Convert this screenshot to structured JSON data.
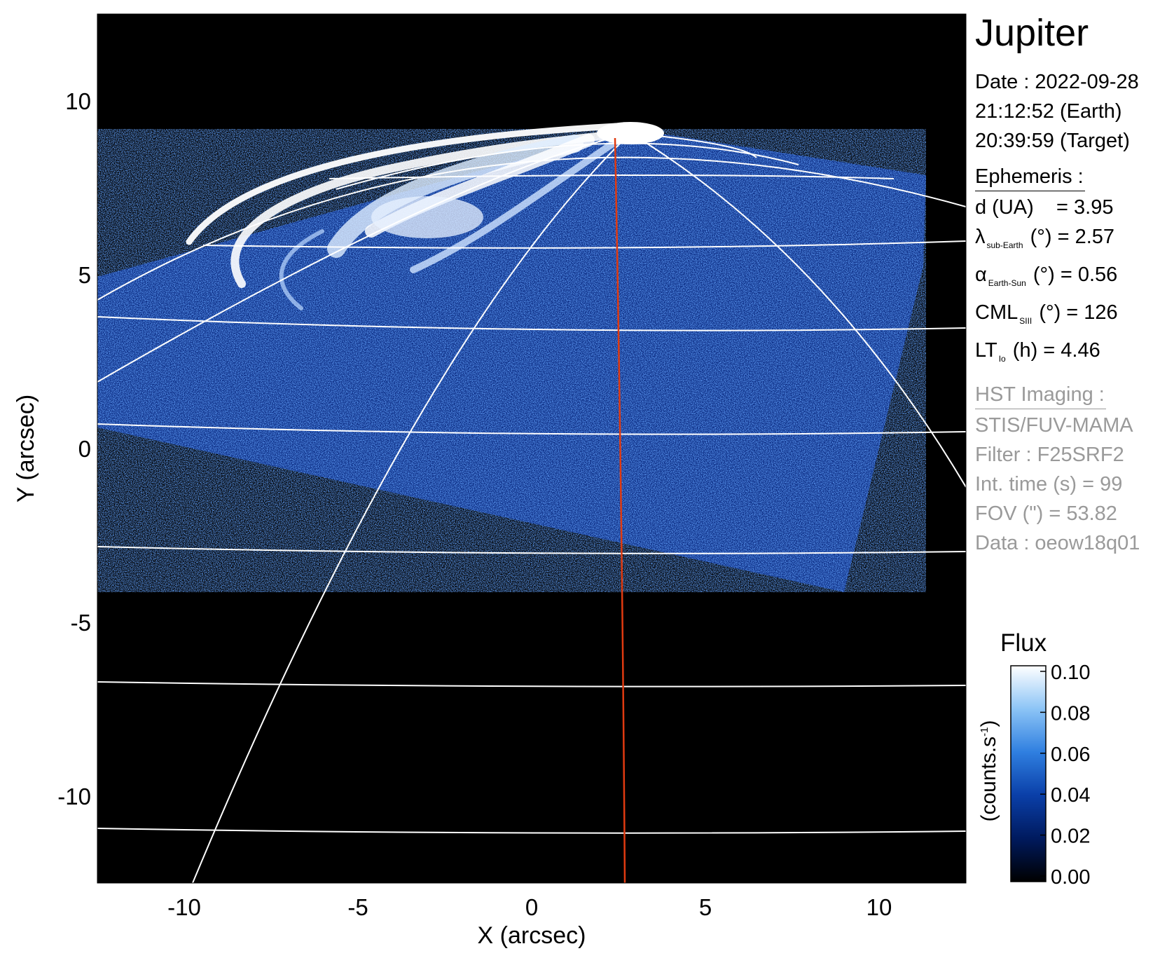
{
  "title": "Jupiter",
  "observation": {
    "date_line": "Date : 2022-09-28",
    "earth_time_line": "21:12:52 (Earth)",
    "target_time_line": "20:39:59 (Target)"
  },
  "ephemeris": {
    "heading": "Ephemeris :",
    "distance": {
      "label": "d (UA)",
      "value_text": "= 3.95"
    },
    "lambda": {
      "symbol": "λ",
      "sub": "sub-Earth",
      "unit": "(°)",
      "value_text": "= 2.57"
    },
    "alpha": {
      "symbol": "α",
      "sub": "Earth-Sun",
      "unit": "(°)",
      "value_text": "= 0.56"
    },
    "cml": {
      "symbol": "CML",
      "sub": "SIII",
      "unit": "(°)",
      "value_text": "= 126"
    },
    "lt": {
      "symbol": "LT",
      "sub": "Io",
      "unit": "(h)",
      "value_text": "= 4.46"
    }
  },
  "imaging": {
    "heading": "HST Imaging :",
    "instrument": "STIS/FUV-MAMA",
    "filter": "Filter : F25SRF2",
    "int_time": "Int. time (s) = 99",
    "fov": "FOV (\") = 53.82",
    "data": "Data : oeow18q01"
  },
  "axes": {
    "x_label": "X (arcsec)",
    "y_label": "Y (arcsec)",
    "x_ticks": [
      "-10",
      "-5",
      "0",
      "5",
      "10"
    ],
    "y_ticks": [
      "10",
      "5",
      "0",
      "-5",
      "-10"
    ],
    "x_tick_values": [
      -10,
      -5,
      0,
      5,
      10
    ],
    "y_tick_values": [
      10,
      5,
      0,
      -5,
      -10
    ],
    "range": [
      -12.5,
      12.5
    ]
  },
  "colorbar": {
    "title": "Flux",
    "unit": "(counts.s",
    "unit_exp": "-1",
    "unit_close": ")",
    "ticks": [
      "0.10",
      "0.08",
      "0.06",
      "0.04",
      "0.02",
      "0.00"
    ],
    "tick_values": [
      0.1,
      0.08,
      0.06,
      0.04,
      0.02,
      0.0
    ],
    "range": [
      0.0,
      0.1
    ],
    "colormap": [
      "#000000",
      "#001a5e",
      "#0a3fa8",
      "#2f7fe0",
      "#8cc4f6",
      "#ffffff"
    ]
  },
  "colors": {
    "background": "#000000",
    "grid": "#ffffff",
    "meridian": "#e03a10",
    "noise_dark": "#0a2a8a",
    "noise_light": "#5a9af0"
  }
}
